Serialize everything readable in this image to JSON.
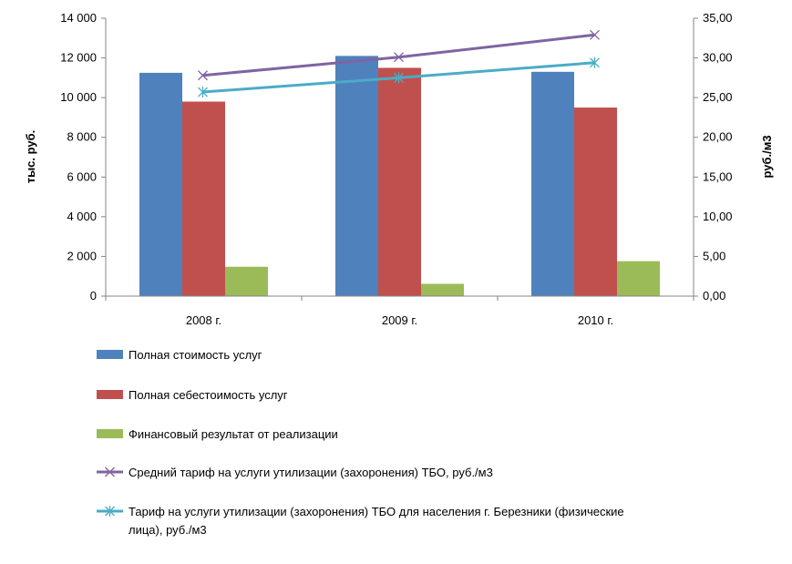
{
  "chart_data": {
    "type": "bar",
    "categories": [
      "2008 г.",
      "2009 г.",
      "2010 г."
    ],
    "series": [
      {
        "name": "Полная стоимость услуг",
        "kind": "bar",
        "axis": "left",
        "color": "#4F81BD",
        "values": [
          11250,
          12100,
          11300
        ]
      },
      {
        "name": "Полная себестоимость услуг",
        "kind": "bar",
        "axis": "left",
        "color": "#C0504D",
        "values": [
          9800,
          11500,
          9500
        ]
      },
      {
        "name": "Финансовый результат от реализации",
        "kind": "bar",
        "axis": "left",
        "color": "#9BBB59",
        "values": [
          1480,
          620,
          1760
        ]
      },
      {
        "name": "Средний тариф на услуги утилизации (захоронения) ТБО, руб./м3",
        "kind": "line",
        "axis": "right",
        "color": "#8064A2",
        "marker": "x",
        "values": [
          27.8,
          30.1,
          32.9
        ]
      },
      {
        "name_lines": [
          "Тариф на услуги утилизации (захоронения) ТБО для населения г. Березники (физические",
          "лица), руб./м3"
        ],
        "kind": "line",
        "axis": "right",
        "color": "#4BACC6",
        "marker": "star",
        "values": [
          25.7,
          27.5,
          29.4
        ]
      }
    ],
    "y_left": {
      "label": "тыс. руб.",
      "ylim": [
        0,
        14000
      ],
      "ticks": [
        "0",
        "2 000",
        "4 000",
        "6 000",
        "8 000",
        "10 000",
        "12 000",
        "14 000"
      ]
    },
    "y_right": {
      "label": "руб./м3",
      "ylim": [
        0,
        35
      ],
      "ticks": [
        "0,00",
        "5,00",
        "10,00",
        "15,00",
        "20,00",
        "25,00",
        "30,00",
        "35,00"
      ]
    },
    "grid": false,
    "legend_position": "bottom"
  }
}
